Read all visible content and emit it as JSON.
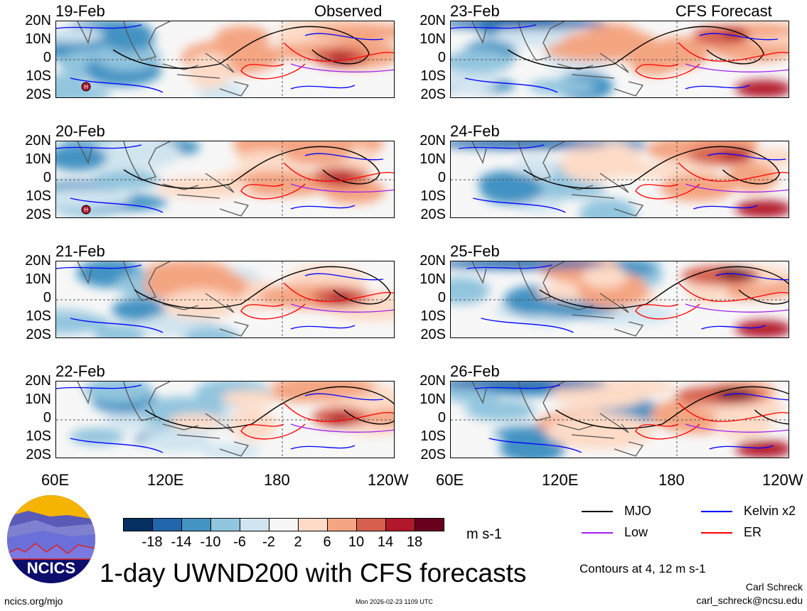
{
  "header": {
    "left_label": "Observed",
    "right_label": "CFS Forecast"
  },
  "observed_dates": [
    "19-Feb",
    "20-Feb",
    "21-Feb",
    "22-Feb"
  ],
  "forecast_dates": [
    "23-Feb",
    "24-Feb",
    "25-Feb",
    "26-Feb"
  ],
  "y_ticks": [
    "20N",
    "10N",
    "0",
    "10S",
    "20S"
  ],
  "x_ticks": [
    "60E",
    "120E",
    "180",
    "120W"
  ],
  "colorbar": {
    "colors": [
      "#053061",
      "#2166ac",
      "#4393c3",
      "#92c5de",
      "#d1e5f0",
      "#f7f7f7",
      "#fddbc7",
      "#f4a582",
      "#d6604d",
      "#b2182b",
      "#67001f"
    ],
    "labels": [
      "-18",
      "-14",
      "-10",
      "-6",
      "-2",
      "2",
      "6",
      "10",
      "14",
      "18"
    ],
    "units": "m s-1"
  },
  "legend": {
    "items": [
      {
        "label": "MJO",
        "color": "#000000"
      },
      {
        "label": "Kelvin x2",
        "color": "#0000ff"
      },
      {
        "label": "Low",
        "color": "#a020f0"
      },
      {
        "label": "ER",
        "color": "#ff0000"
      }
    ],
    "contours_note": "Contours at 4, 12 m s-1"
  },
  "title": "1-day UWND200 with CFS forecasts",
  "logo": {
    "text": "NCICS"
  },
  "footer": {
    "url": "ncics.org/mjo",
    "timestamp": "Mon 2026-02-23 1109 UTC",
    "author": "Carl Schreck",
    "email": "carl_schreck@ncsu.edu"
  },
  "marker": "H"
}
